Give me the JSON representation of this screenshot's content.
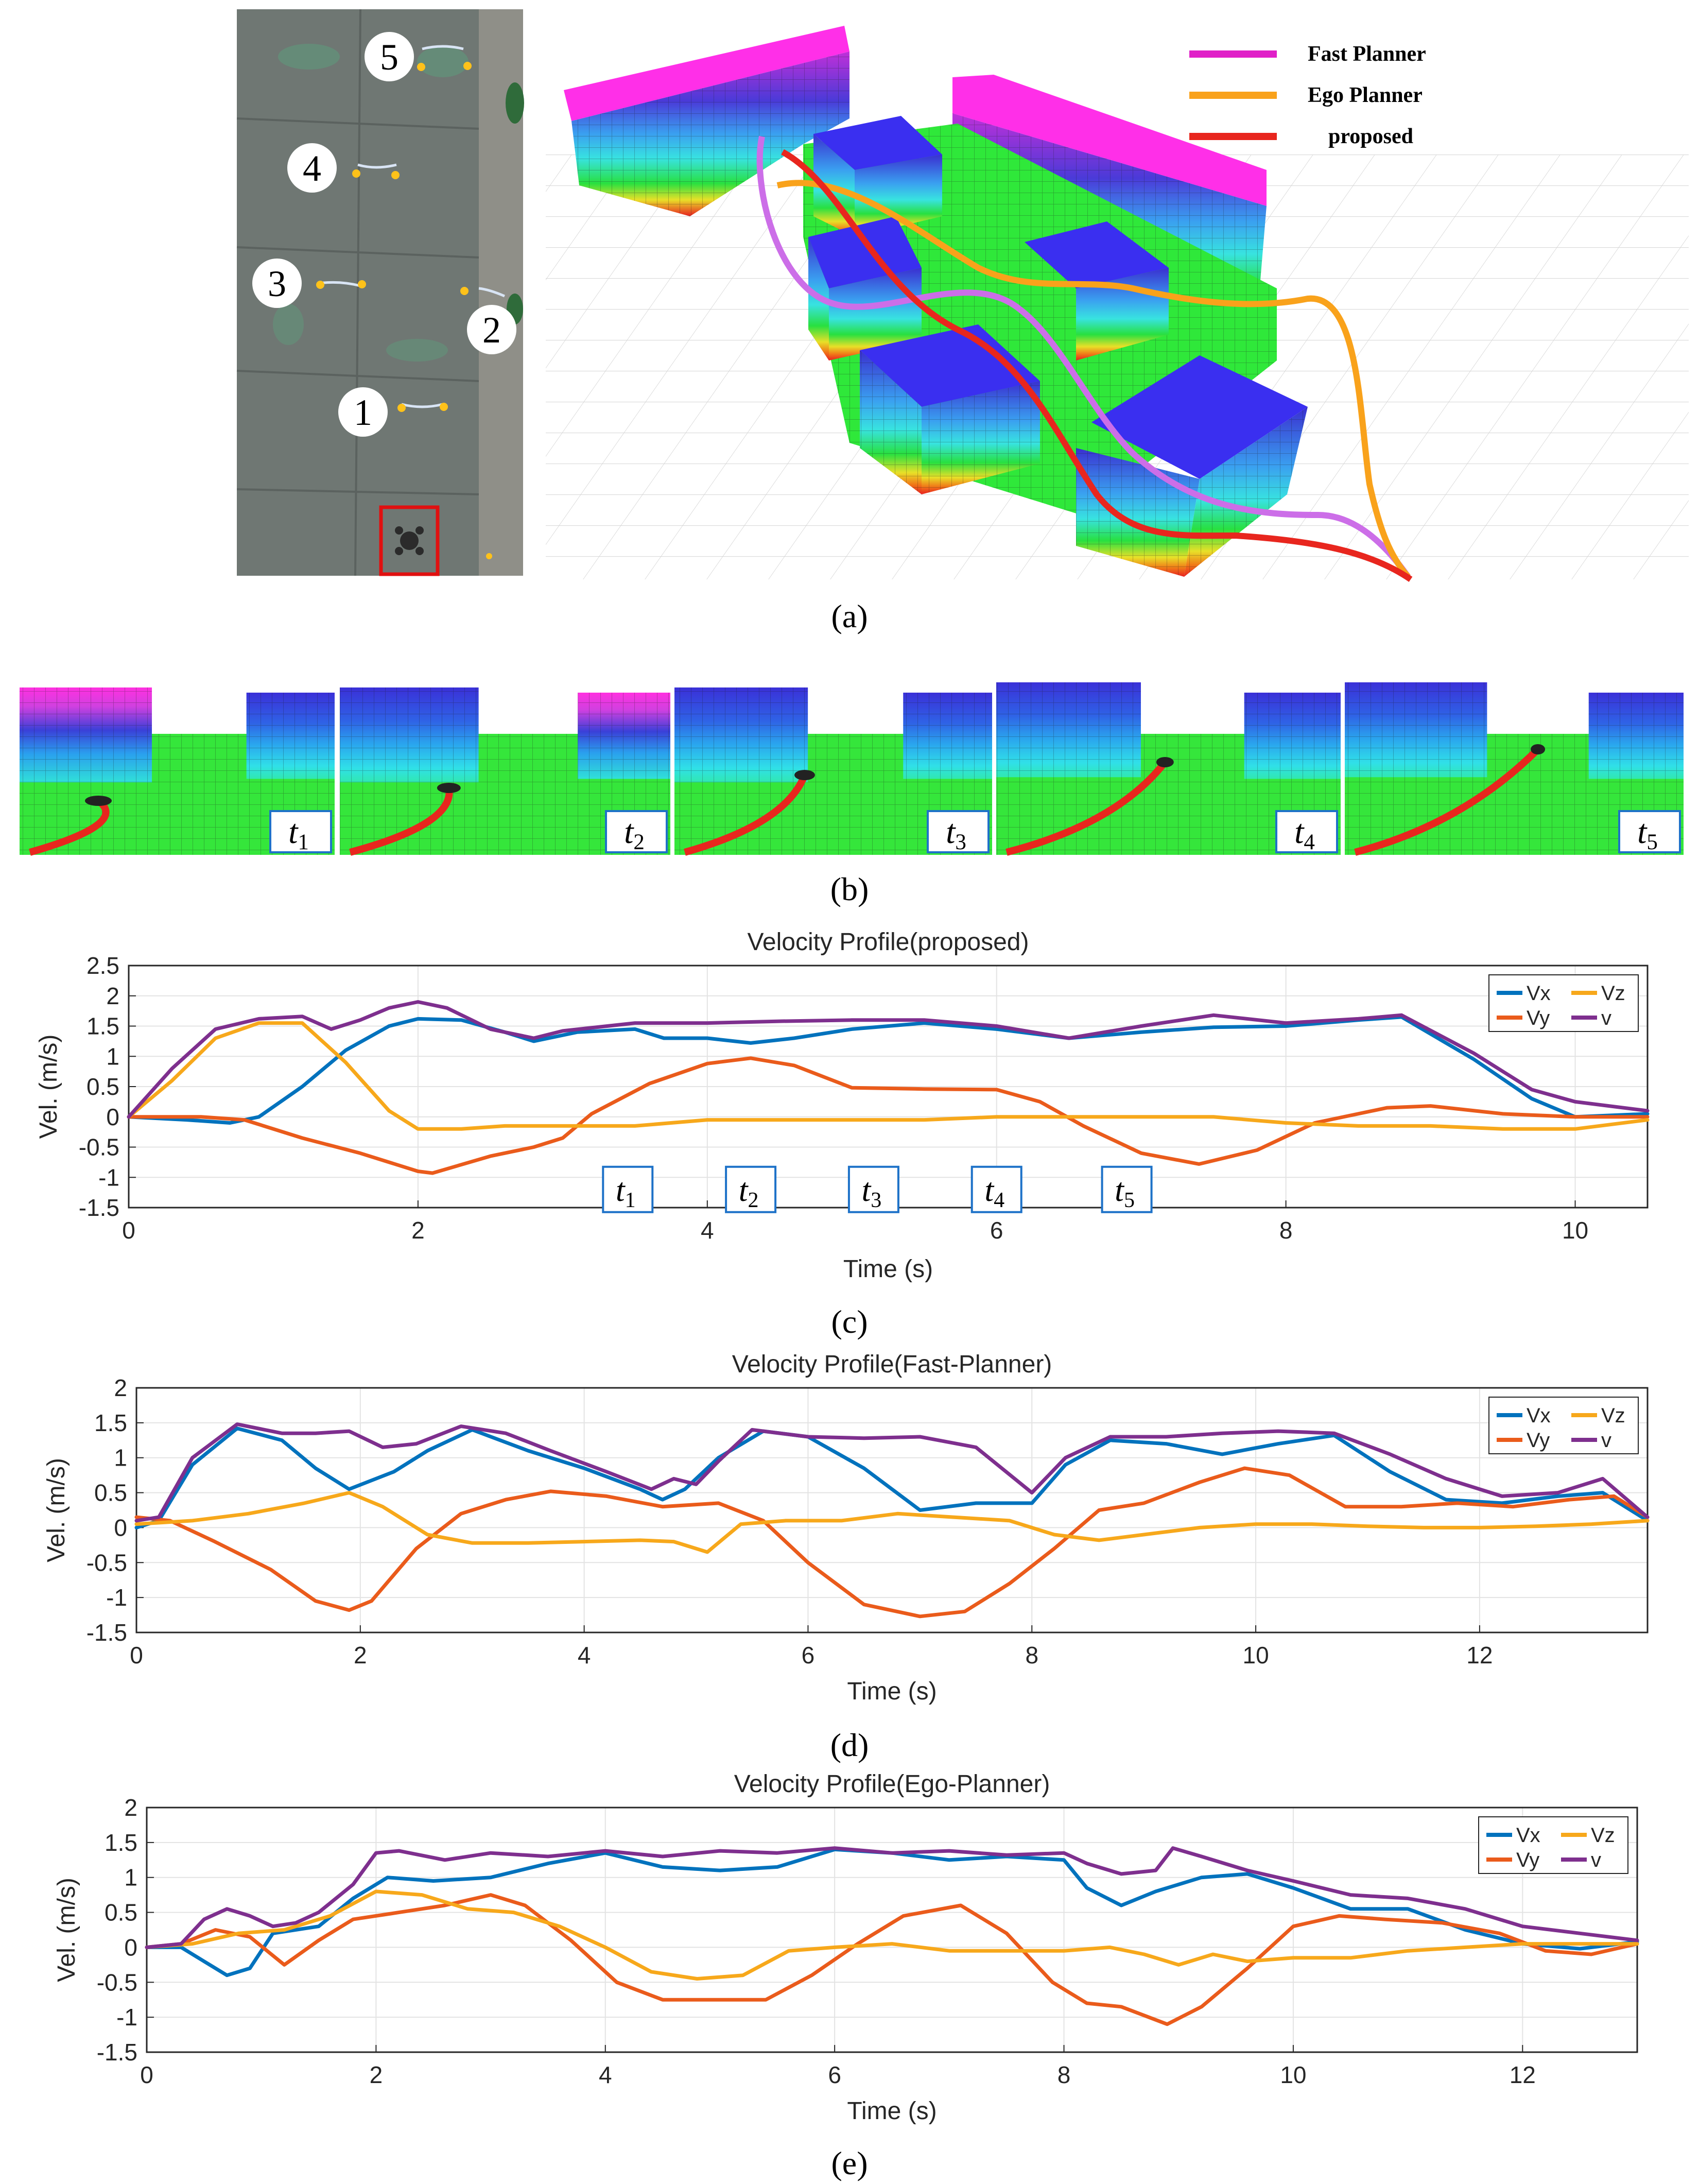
{
  "colors": {
    "vx": "#0072BD",
    "vy": "#EA5B1B",
    "vz": "#F7A81B",
    "v": "#7E2F8E",
    "fast_planner": "#E020C8",
    "ego_planner": "#F9A21B",
    "proposed": "#E8261E",
    "time_box": "#1E72C8"
  },
  "panel_a": {
    "label": "(a)",
    "markers": [
      "1",
      "2",
      "3",
      "4",
      "5"
    ],
    "legend": [
      {
        "label": "Fast Planner",
        "color_key": "fast_planner"
      },
      {
        "label": "Ego Planner",
        "color_key": "ego_planner"
      },
      {
        "label": "proposed",
        "color_key": "proposed"
      }
    ]
  },
  "panel_b": {
    "label": "(b)",
    "frames": [
      {
        "t": "t",
        "sub": "1"
      },
      {
        "t": "t",
        "sub": "2"
      },
      {
        "t": "t",
        "sub": "3"
      },
      {
        "t": "t",
        "sub": "4"
      },
      {
        "t": "t",
        "sub": "5"
      }
    ]
  },
  "chart_data": [
    {
      "id": "c",
      "panel_label": "(c)",
      "type": "line",
      "title": "Velocity Profile(proposed)",
      "xlabel": "Time (s)",
      "ylabel": "Vel. (m/s)",
      "xlim": [
        0,
        10.5
      ],
      "ylim": [
        -1.5,
        2.5
      ],
      "xticks": [
        0,
        2,
        4,
        6,
        8,
        10
      ],
      "yticks": [
        -1.5,
        -1,
        -0.5,
        0,
        0.5,
        1,
        1.5,
        2,
        2.5
      ],
      "ytick_labels": [
        "-1.5",
        "-1",
        "-0.5",
        "0",
        "0.5",
        "1",
        "1.5",
        "2",
        "2.5"
      ],
      "grid": true,
      "legend_position": "top-right",
      "legend": [
        "Vx",
        "Vz",
        "Vy",
        "v"
      ],
      "time_markers": [
        {
          "t": "t",
          "sub": "1",
          "x": 3.45
        },
        {
          "t": "t",
          "sub": "2",
          "x": 4.3
        },
        {
          "t": "t",
          "sub": "3",
          "x": 5.15
        },
        {
          "t": "t",
          "sub": "4",
          "x": 6.0
        },
        {
          "t": "t",
          "sub": "5",
          "x": 6.9
        }
      ],
      "series": [
        {
          "name": "Vx",
          "color_key": "vx",
          "x": [
            0,
            0.4,
            0.7,
            0.9,
            1.2,
            1.5,
            1.8,
            2.0,
            2.3,
            2.6,
            2.8,
            3.1,
            3.5,
            3.7,
            4.0,
            4.3,
            4.6,
            5.0,
            5.5,
            6.0,
            6.5,
            7.0,
            7.5,
            8.0,
            8.5,
            8.8,
            9.3,
            9.7,
            10.0,
            10.5
          ],
          "values": [
            0,
            -0.05,
            -0.1,
            0.0,
            0.5,
            1.1,
            1.5,
            1.62,
            1.6,
            1.4,
            1.25,
            1.4,
            1.45,
            1.3,
            1.3,
            1.22,
            1.3,
            1.45,
            1.55,
            1.45,
            1.3,
            1.4,
            1.48,
            1.5,
            1.6,
            1.65,
            0.95,
            0.3,
            0.0,
            0.05
          ]
        },
        {
          "name": "Vy",
          "color_key": "vy",
          "x": [
            0,
            0.5,
            0.8,
            1.2,
            1.6,
            2.0,
            2.1,
            2.5,
            2.8,
            3.0,
            3.2,
            3.6,
            4.0,
            4.3,
            4.6,
            5.0,
            5.5,
            6.0,
            6.3,
            6.6,
            7.0,
            7.4,
            7.8,
            8.2,
            8.7,
            9.0,
            9.5,
            10.0,
            10.5
          ],
          "values": [
            0,
            0.0,
            -0.05,
            -0.35,
            -0.6,
            -0.9,
            -0.93,
            -0.65,
            -0.5,
            -0.35,
            0.05,
            0.55,
            0.88,
            0.97,
            0.85,
            0.48,
            0.46,
            0.45,
            0.25,
            -0.15,
            -0.6,
            -0.78,
            -0.55,
            -0.1,
            0.15,
            0.18,
            0.05,
            0.0,
            0.0
          ]
        },
        {
          "name": "Vz",
          "color_key": "vz",
          "x": [
            0,
            0.3,
            0.6,
            0.9,
            1.2,
            1.5,
            1.8,
            2.0,
            2.3,
            2.6,
            3.0,
            3.5,
            4.0,
            4.5,
            5.0,
            5.5,
            6.0,
            6.5,
            7.0,
            7.5,
            8.0,
            8.5,
            9.0,
            9.5,
            10.0,
            10.5
          ],
          "values": [
            0,
            0.6,
            1.3,
            1.55,
            1.55,
            0.9,
            0.1,
            -0.2,
            -0.2,
            -0.15,
            -0.15,
            -0.15,
            -0.05,
            -0.05,
            -0.05,
            -0.05,
            0.0,
            0.0,
            0.0,
            0.0,
            -0.1,
            -0.15,
            -0.15,
            -0.2,
            -0.2,
            -0.05
          ]
        },
        {
          "name": "v",
          "color_key": "v",
          "x": [
            0,
            0.3,
            0.6,
            0.9,
            1.2,
            1.4,
            1.6,
            1.8,
            2.0,
            2.2,
            2.5,
            2.8,
            3.0,
            3.5,
            4.0,
            4.5,
            5.0,
            5.5,
            6.0,
            6.5,
            7.0,
            7.5,
            8.0,
            8.5,
            8.8,
            9.3,
            9.7,
            10.0,
            10.5
          ],
          "values": [
            0,
            0.8,
            1.45,
            1.62,
            1.66,
            1.45,
            1.6,
            1.8,
            1.9,
            1.8,
            1.45,
            1.3,
            1.42,
            1.55,
            1.55,
            1.58,
            1.6,
            1.6,
            1.5,
            1.3,
            1.5,
            1.68,
            1.55,
            1.62,
            1.68,
            1.05,
            0.45,
            0.25,
            0.1
          ]
        }
      ]
    },
    {
      "id": "d",
      "panel_label": "(d)",
      "type": "line",
      "title": "Velocity Profile(Fast-Planner)",
      "xlabel": "Time (s)",
      "ylabel": "Vel. (m/s)",
      "xlim": [
        0,
        13.5
      ],
      "ylim": [
        -1.5,
        2
      ],
      "xticks": [
        0,
        2,
        4,
        6,
        8,
        10,
        12
      ],
      "yticks": [
        -1.5,
        -1,
        -0.5,
        0,
        0.5,
        1,
        1.5,
        2
      ],
      "ytick_labels": [
        "-1.5",
        "-1",
        "-0.5",
        "0",
        "0.5",
        "1",
        "1.5",
        "2"
      ],
      "grid": true,
      "legend_position": "top-right",
      "legend": [
        "Vx",
        "Vz",
        "Vy",
        "v"
      ],
      "series": [
        {
          "name": "Vx",
          "color_key": "vx",
          "x": [
            0,
            0.2,
            0.5,
            0.9,
            1.3,
            1.6,
            1.9,
            2.3,
            2.6,
            3.0,
            3.5,
            4.0,
            4.5,
            4.7,
            4.9,
            5.2,
            5.6,
            6.0,
            6.5,
            7.0,
            7.5,
            8.0,
            8.3,
            8.7,
            9.2,
            9.7,
            10.2,
            10.7,
            11.2,
            11.7,
            12.2,
            12.7,
            13.1,
            13.5
          ],
          "values": [
            0,
            0.1,
            0.9,
            1.42,
            1.25,
            0.85,
            0.55,
            0.8,
            1.1,
            1.4,
            1.1,
            0.85,
            0.55,
            0.4,
            0.55,
            1.0,
            1.38,
            1.3,
            0.85,
            0.25,
            0.35,
            0.35,
            0.9,
            1.25,
            1.2,
            1.05,
            1.2,
            1.32,
            0.8,
            0.4,
            0.35,
            0.45,
            0.5,
            0.1
          ]
        },
        {
          "name": "Vy",
          "color_key": "vy",
          "x": [
            0,
            0.3,
            0.7,
            1.2,
            1.6,
            1.9,
            2.1,
            2.5,
            2.9,
            3.3,
            3.7,
            4.2,
            4.7,
            5.2,
            5.6,
            6.0,
            6.5,
            7.0,
            7.4,
            7.8,
            8.2,
            8.6,
            9.0,
            9.5,
            9.9,
            10.3,
            10.8,
            11.3,
            11.8,
            12.3,
            12.8,
            13.2,
            13.5
          ],
          "values": [
            0.15,
            0.1,
            -0.2,
            -0.6,
            -1.05,
            -1.18,
            -1.05,
            -0.3,
            0.2,
            0.4,
            0.52,
            0.45,
            0.3,
            0.35,
            0.1,
            -0.5,
            -1.1,
            -1.27,
            -1.2,
            -0.8,
            -0.3,
            0.25,
            0.35,
            0.65,
            0.85,
            0.75,
            0.3,
            0.3,
            0.35,
            0.3,
            0.4,
            0.45,
            0.15
          ]
        },
        {
          "name": "Vz",
          "color_key": "vz",
          "x": [
            0,
            0.5,
            1.0,
            1.5,
            1.9,
            2.2,
            2.6,
            3.0,
            3.5,
            4.0,
            4.5,
            4.8,
            5.1,
            5.4,
            5.8,
            6.3,
            6.8,
            7.3,
            7.8,
            8.2,
            8.6,
            9.0,
            9.5,
            10.0,
            10.5,
            11.0,
            11.5,
            12.0,
            12.5,
            13.0,
            13.5
          ],
          "values": [
            0.05,
            0.1,
            0.2,
            0.35,
            0.5,
            0.3,
            -0.1,
            -0.22,
            -0.22,
            -0.2,
            -0.18,
            -0.2,
            -0.35,
            0.05,
            0.1,
            0.1,
            0.2,
            0.15,
            0.1,
            -0.1,
            -0.18,
            -0.1,
            0.0,
            0.05,
            0.05,
            0.02,
            0.0,
            0.0,
            0.02,
            0.05,
            0.1
          ]
        },
        {
          "name": "v",
          "color_key": "v",
          "x": [
            0,
            0.2,
            0.5,
            0.9,
            1.3,
            1.6,
            1.9,
            2.2,
            2.5,
            2.9,
            3.3,
            3.7,
            4.2,
            4.6,
            4.8,
            5.0,
            5.2,
            5.5,
            6.0,
            6.5,
            7.0,
            7.5,
            8.0,
            8.3,
            8.7,
            9.2,
            9.7,
            10.2,
            10.7,
            11.2,
            11.7,
            12.2,
            12.7,
            13.1,
            13.5
          ],
          "values": [
            0.1,
            0.15,
            1.0,
            1.48,
            1.35,
            1.35,
            1.38,
            1.15,
            1.2,
            1.45,
            1.35,
            1.1,
            0.8,
            0.55,
            0.7,
            0.62,
            0.95,
            1.4,
            1.3,
            1.28,
            1.3,
            1.15,
            0.5,
            1.0,
            1.3,
            1.3,
            1.35,
            1.38,
            1.35,
            1.05,
            0.7,
            0.45,
            0.5,
            0.7,
            0.15
          ]
        }
      ]
    },
    {
      "id": "e",
      "panel_label": "(e)",
      "type": "line",
      "title": "Velocity Profile(Ego-Planner)",
      "xlabel": "Time (s)",
      "ylabel": "Vel. (m/s)",
      "xlim": [
        0,
        13
      ],
      "ylim": [
        -1.5,
        2
      ],
      "xticks": [
        0,
        2,
        4,
        6,
        8,
        10,
        12
      ],
      "yticks": [
        -1.5,
        -1,
        -0.5,
        0,
        0.5,
        1,
        1.5,
        2
      ],
      "ytick_labels": [
        "-1.5",
        "-1",
        "-0.5",
        "0",
        "0.5",
        "1",
        "1.5",
        "2"
      ],
      "grid": true,
      "legend_position": "top-right",
      "legend": [
        "Vx",
        "Vz",
        "Vy",
        "v"
      ],
      "series": [
        {
          "name": "Vx",
          "color_key": "vx",
          "x": [
            0,
            0.3,
            0.5,
            0.7,
            0.9,
            1.1,
            1.5,
            1.8,
            2.1,
            2.5,
            3.0,
            3.5,
            4.0,
            4.5,
            5.0,
            5.5,
            6.0,
            6.5,
            7.0,
            7.5,
            8.0,
            8.2,
            8.5,
            8.8,
            9.2,
            9.6,
            10.0,
            10.5,
            11.0,
            11.5,
            12.0,
            12.5,
            13.0
          ],
          "values": [
            0,
            0.0,
            -0.2,
            -0.4,
            -0.3,
            0.2,
            0.3,
            0.7,
            1.0,
            0.95,
            1.0,
            1.2,
            1.35,
            1.15,
            1.1,
            1.15,
            1.4,
            1.35,
            1.25,
            1.3,
            1.25,
            0.85,
            0.6,
            0.8,
            1.0,
            1.05,
            0.85,
            0.55,
            0.55,
            0.25,
            0.05,
            -0.02,
            0.08
          ]
        },
        {
          "name": "Vy",
          "color_key": "vy",
          "x": [
            0,
            0.3,
            0.6,
            0.9,
            1.2,
            1.5,
            1.8,
            2.2,
            2.6,
            3.0,
            3.3,
            3.7,
            4.1,
            4.5,
            5.0,
            5.4,
            5.8,
            6.2,
            6.6,
            7.1,
            7.5,
            7.9,
            8.2,
            8.5,
            8.9,
            9.2,
            9.6,
            10.0,
            10.4,
            10.8,
            11.3,
            11.8,
            12.2,
            12.6,
            13.0
          ],
          "values": [
            0,
            0.05,
            0.25,
            0.15,
            -0.25,
            0.1,
            0.4,
            0.5,
            0.6,
            0.75,
            0.6,
            0.1,
            -0.5,
            -0.75,
            -0.75,
            -0.75,
            -0.4,
            0.05,
            0.45,
            0.6,
            0.2,
            -0.5,
            -0.8,
            -0.85,
            -1.1,
            -0.85,
            -0.3,
            0.3,
            0.45,
            0.4,
            0.35,
            0.2,
            -0.05,
            -0.1,
            0.05
          ]
        },
        {
          "name": "Vz",
          "color_key": "vz",
          "x": [
            0,
            0.4,
            0.8,
            1.2,
            1.6,
            2.0,
            2.4,
            2.8,
            3.2,
            3.6,
            4.0,
            4.4,
            4.8,
            5.2,
            5.6,
            6.0,
            6.5,
            7.0,
            7.5,
            8.0,
            8.4,
            8.7,
            9.0,
            9.3,
            9.6,
            10.0,
            10.5,
            11.0,
            11.5,
            12.0,
            12.5,
            13.0
          ],
          "values": [
            0,
            0.05,
            0.2,
            0.25,
            0.45,
            0.8,
            0.75,
            0.55,
            0.5,
            0.3,
            0.0,
            -0.35,
            -0.45,
            -0.4,
            -0.05,
            0.0,
            0.05,
            -0.05,
            -0.05,
            -0.05,
            0.0,
            -0.1,
            -0.25,
            -0.1,
            -0.2,
            -0.15,
            -0.15,
            -0.05,
            0.0,
            0.05,
            0.05,
            0.05
          ]
        },
        {
          "name": "v",
          "color_key": "v",
          "x": [
            0,
            0.3,
            0.5,
            0.7,
            0.9,
            1.1,
            1.3,
            1.5,
            1.8,
            2.0,
            2.2,
            2.6,
            3.0,
            3.5,
            4.0,
            4.5,
            5.0,
            5.5,
            6.0,
            6.5,
            7.0,
            7.5,
            8.0,
            8.2,
            8.5,
            8.8,
            8.95,
            9.2,
            9.6,
            10.0,
            10.5,
            11.0,
            11.5,
            12.0,
            12.5,
            13.0
          ],
          "values": [
            0,
            0.05,
            0.4,
            0.55,
            0.45,
            0.3,
            0.35,
            0.5,
            0.9,
            1.35,
            1.38,
            1.25,
            1.35,
            1.3,
            1.38,
            1.3,
            1.38,
            1.35,
            1.42,
            1.35,
            1.38,
            1.32,
            1.35,
            1.2,
            1.05,
            1.1,
            1.42,
            1.3,
            1.1,
            0.95,
            0.75,
            0.7,
            0.55,
            0.3,
            0.2,
            0.1
          ]
        }
      ]
    }
  ]
}
